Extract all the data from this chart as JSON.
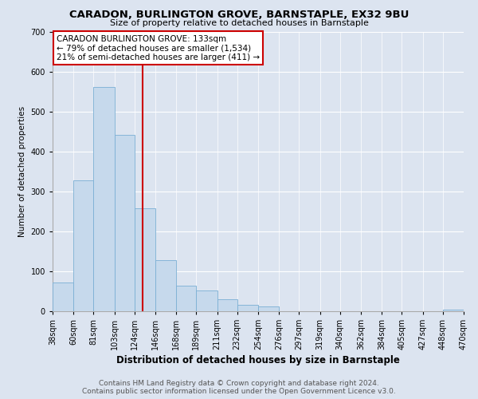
{
  "title": "CARADON, BURLINGTON GROVE, BARNSTAPLE, EX32 9BU",
  "subtitle": "Size of property relative to detached houses in Barnstaple",
  "xlabel": "Distribution of detached houses by size in Barnstaple",
  "ylabel": "Number of detached properties",
  "footer_line1": "Contains HM Land Registry data © Crown copyright and database right 2024.",
  "footer_line2": "Contains public sector information licensed under the Open Government Licence v3.0.",
  "bin_edges": [
    38,
    60,
    81,
    103,
    124,
    146,
    168,
    189,
    211,
    232,
    254,
    276,
    297,
    319,
    340,
    362,
    384,
    405,
    427,
    448,
    470
  ],
  "bin_labels": [
    "38sqm",
    "60sqm",
    "81sqm",
    "103sqm",
    "124sqm",
    "146sqm",
    "168sqm",
    "189sqm",
    "211sqm",
    "232sqm",
    "254sqm",
    "276sqm",
    "297sqm",
    "319sqm",
    "340sqm",
    "362sqm",
    "384sqm",
    "405sqm",
    "427sqm",
    "448sqm",
    "470sqm"
  ],
  "counts": [
    72,
    328,
    562,
    442,
    259,
    128,
    65,
    52,
    31,
    17,
    12,
    0,
    0,
    0,
    0,
    0,
    0,
    0,
    0,
    5
  ],
  "bar_color": "#c6d9ec",
  "bar_edge_color": "#7bafd4",
  "vline_x": 133,
  "vline_color": "#cc0000",
  "annotation_title": "CARADON BURLINGTON GROVE: 133sqm",
  "annotation_line1": "← 79% of detached houses are smaller (1,534)",
  "annotation_line2": "21% of semi-detached houses are larger (411) →",
  "annotation_box_color": "#ffffff",
  "annotation_box_edge_color": "#cc0000",
  "ylim": [
    0,
    700
  ],
  "yticks": [
    0,
    100,
    200,
    300,
    400,
    500,
    600,
    700
  ],
  "background_color": "#dce4f0",
  "grid_color": "#ffffff",
  "title_fontsize": 9.5,
  "subtitle_fontsize": 8,
  "xlabel_fontsize": 8.5,
  "ylabel_fontsize": 7.5,
  "tick_fontsize": 7,
  "annotation_fontsize": 7.5,
  "footer_fontsize": 6.5
}
